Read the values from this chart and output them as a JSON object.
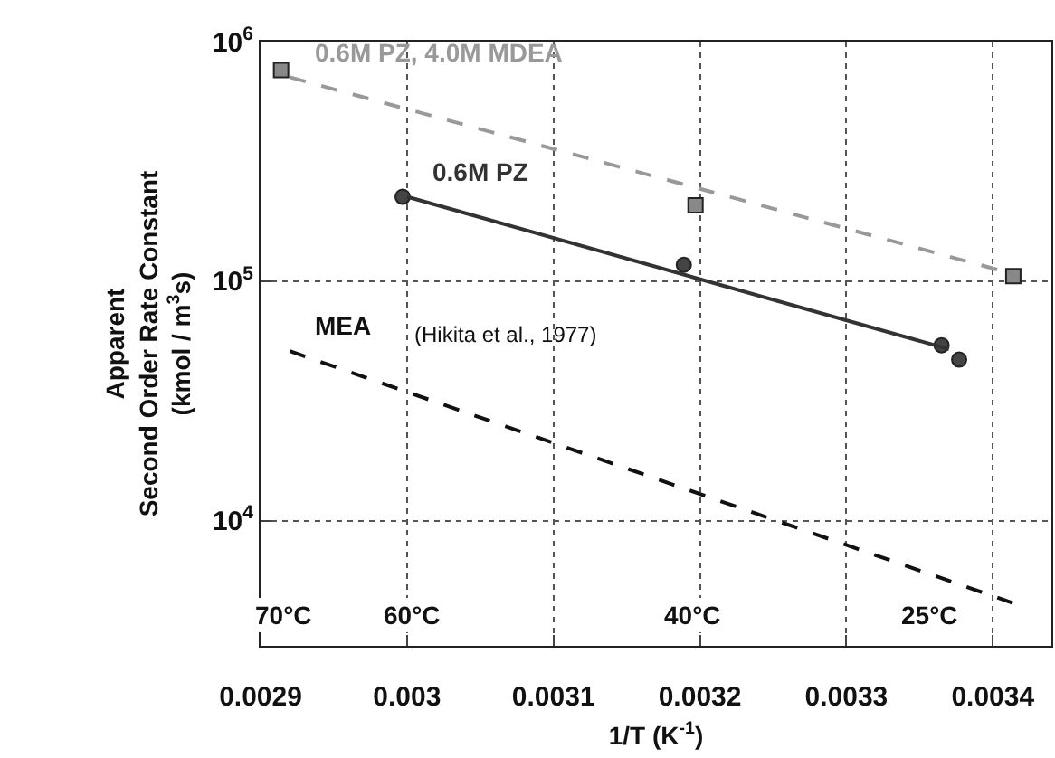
{
  "chart_data": {
    "type": "line",
    "xlabel": "1/T (K$^{-1}$)",
    "ylabel": "Apparent\nSecond Order Rate Constant\n(kmol / m$^{3}$s)",
    "log": "y",
    "grid": true,
    "legend": false,
    "xlim": [
      0.0029,
      0.00344
    ],
    "xticks": [
      0.0029,
      0.003,
      0.0031,
      0.0032,
      0.0033,
      0.0034
    ],
    "ylim": [
      3000,
      1000000
    ],
    "yticks": [
      {
        "value": 10000,
        "label": "10$^{4}$"
      },
      {
        "value": 100000,
        "label": "10$^{5}$"
      },
      {
        "value": 1000000,
        "label": "10$^{6}$"
      }
    ],
    "series": [
      {
        "type": "scatter",
        "marker": "square",
        "color": "#888888",
        "x": [
          0.002914,
          0.003197,
          0.003414
        ],
        "values": [
          760000,
          207000,
          105000
        ]
      },
      {
        "name": "0.6M PZ, 4.0M MDEA",
        "line_style": "dashed",
        "color": "#999999",
        "x": [
          0.00292,
          0.003407
        ],
        "values": [
          710000,
          110000
        ]
      },
      {
        "type": "scatter",
        "marker": "circle",
        "color": "#444444",
        "x": [
          0.002997,
          0.003189,
          0.003365,
          0.003377
        ],
        "values": [
          225000,
          117000,
          54000,
          47000
        ]
      },
      {
        "name": "0.6M PZ",
        "line_style": "solid",
        "color": "#333333",
        "x": [
          0.003,
          0.00337
        ],
        "values": [
          225000,
          52000
        ]
      },
      {
        "name": "MEA",
        "line_style": "dashed",
        "color": "#111111",
        "x": [
          0.00292,
          0.003415
        ],
        "values": [
          51000,
          4500
        ]
      }
    ],
    "annotations": [
      "(Hikita et al., 1977)",
      {
        "text": "70°C",
        "x": 0.002915,
        "y": 4000
      },
      {
        "text": "60°C",
        "x": 0.003003,
        "y": 4000
      },
      {
        "text": "40°C",
        "x": 0.003195,
        "y": 4000
      },
      {
        "text": "25°C",
        "x": 0.003356,
        "y": 4000
      }
    ]
  }
}
